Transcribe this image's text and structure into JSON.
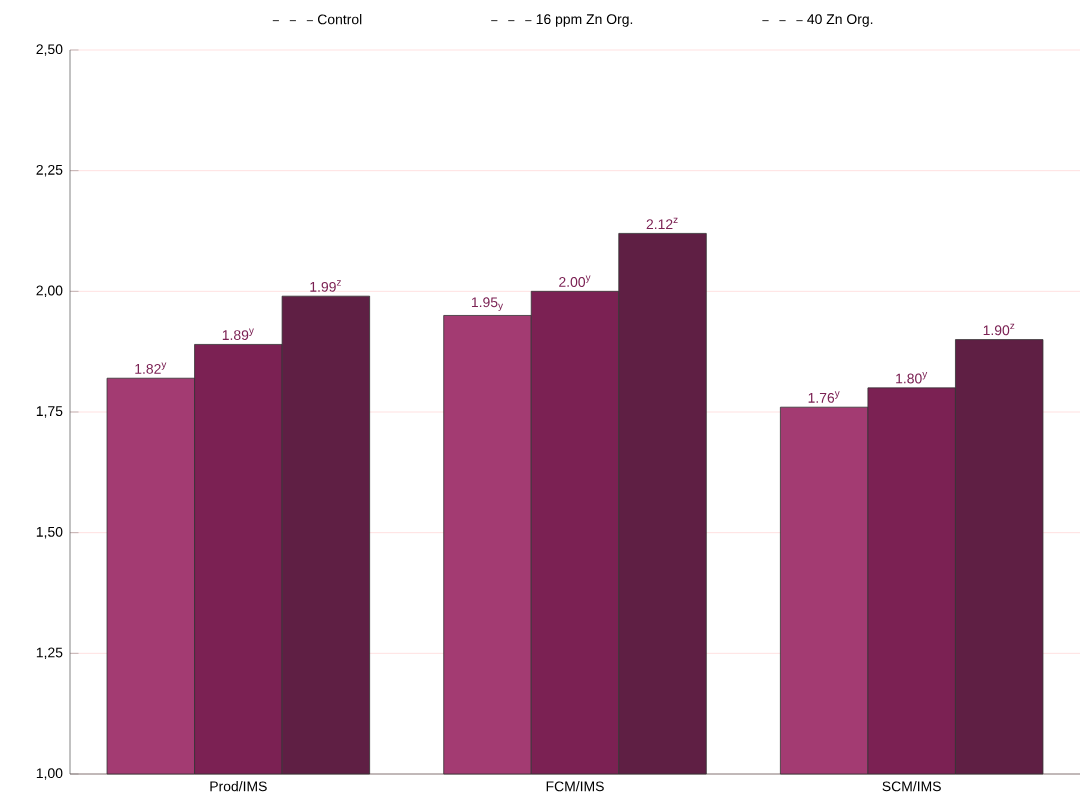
{
  "chart_data": {
    "type": "bar",
    "categories": [
      "Prod/IMS",
      "FCM/IMS",
      "SCM/IMS"
    ],
    "series": [
      {
        "name": "Control",
        "color": "#a33b72",
        "values": [
          1.82,
          1.95,
          1.76
        ],
        "value_labels": [
          "1.82$^{y}$",
          "1.95$_{y}$",
          "1.76$^{y}$"
        ]
      },
      {
        "name": "16 ppm Zn Org.",
        "color": "#7b2153",
        "values": [
          1.89,
          2.0,
          1.8
        ],
        "value_labels": [
          "1.89$^{y}$",
          "2.00$^{y}$",
          "1.80$^{y}$"
        ]
      },
      {
        "name": "40 Zn Org.",
        "color": "#5f1f44",
        "values": [
          1.99,
          2.12,
          1.9
        ],
        "value_labels": [
          "1.99$^{z}$",
          "2.12$^{z}$",
          "1.90$^{z}$"
        ]
      }
    ],
    "ylim": [
      1.0,
      2.5
    ],
    "yticks": [
      {
        "value": 1.0,
        "label": "1,00"
      },
      {
        "value": 1.25,
        "label": "1,25"
      },
      {
        "value": 1.5,
        "label": "1,50"
      },
      {
        "value": 1.75,
        "label": "1,75"
      },
      {
        "value": 2.0,
        "label": "2,00"
      },
      {
        "value": 2.25,
        "label": "2,25"
      },
      {
        "value": 2.5,
        "label": "2,50"
      }
    ],
    "grid": "y",
    "legend": "top"
  }
}
